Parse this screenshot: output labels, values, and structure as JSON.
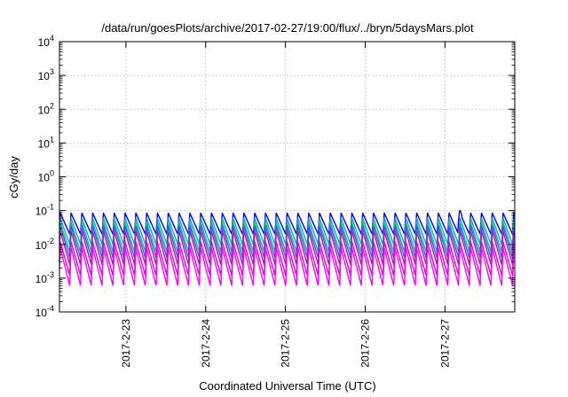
{
  "chart_data": {
    "type": "line",
    "title": "/data/run/goesPlots/archive/2017-02-27/19:00/flux/../bryn/5daysMars.plot",
    "xlabel": "Coordinated Universal Time (UTC)",
    "ylabel": "cGy/day",
    "yscale": "log",
    "ylim": [
      0.0001,
      10000
    ],
    "xlim": [
      "2017-02-22 04:00",
      "2017-02-27 21:00"
    ],
    "y_ticks": [
      {
        "value": 0.0001,
        "base": "10",
        "exp": "-4"
      },
      {
        "value": 0.001,
        "base": "10",
        "exp": "-3"
      },
      {
        "value": 0.01,
        "base": "10",
        "exp": "-2"
      },
      {
        "value": 0.1,
        "base": "10",
        "exp": "-1"
      },
      {
        "value": 1,
        "base": "10",
        "exp": "0"
      },
      {
        "value": 10,
        "base": "10",
        "exp": "1"
      },
      {
        "value": 100,
        "base": "10",
        "exp": "2"
      },
      {
        "value": 1000,
        "base": "10",
        "exp": "3"
      },
      {
        "value": 10000,
        "base": "10",
        "exp": "4"
      }
    ],
    "x_ticks": [
      "2017-2-23",
      "2017-2-24",
      "2017-2-25",
      "2017-2-26",
      "2017-2-27"
    ],
    "grid": true,
    "legend": "none",
    "oscillation_period_hours": 3.25,
    "series": [
      {
        "color": "#0000ff",
        "peak": 0.085,
        "trough": 0.02
      },
      {
        "color": "#20a0c0",
        "peak": 0.06,
        "trough": 0.01
      },
      {
        "color": "#00c0a0",
        "peak": 0.045,
        "trough": 0.006
      },
      {
        "color": "#5050e0",
        "peak": 0.035,
        "trough": 0.004
      },
      {
        "color": "#a020a0",
        "peak": 0.025,
        "trough": 0.0025
      },
      {
        "color": "#e000e0",
        "peak": 0.012,
        "trough": 0.0012
      },
      {
        "color": "#ff00ff",
        "peak": 0.008,
        "trough": 0.0006
      }
    ],
    "events": [
      {
        "time": "2017-02-27 04:30",
        "value": 0.1,
        "note": "spike"
      }
    ]
  }
}
